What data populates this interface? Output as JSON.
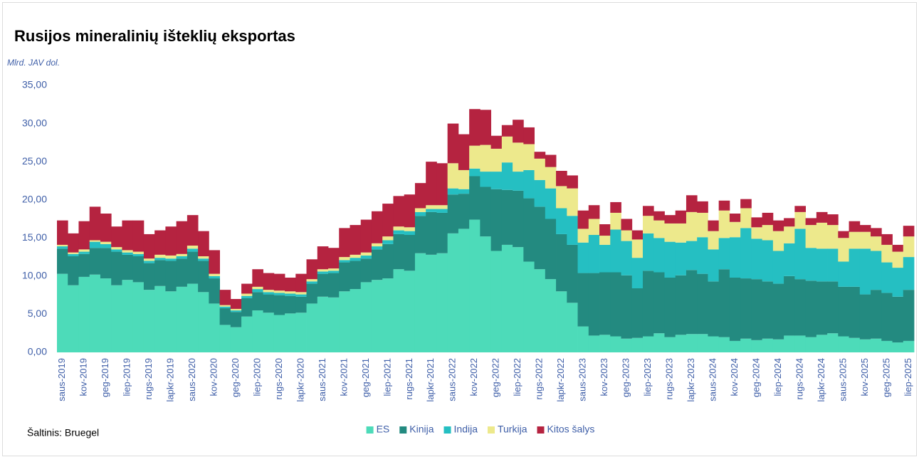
{
  "chart_data": {
    "type": "stacked_bar",
    "title": "Rusijos mineralinių išteklių eksportas",
    "y_axis_label": "Mlrd. JAV dol.",
    "source": "Šaltinis: Bruegel",
    "categories": [
      "saus-2019",
      null,
      "kov-2019",
      null,
      "geg-2019",
      null,
      "liep-2019",
      null,
      "rugs-2019",
      null,
      "lapkr-2019",
      null,
      "saus-2020",
      null,
      "kov-2020",
      null,
      "geg-2020",
      null,
      "liep-2020",
      null,
      "rugs-2020",
      null,
      "lapkr-2020",
      null,
      "saus-2021",
      null,
      "kov-2021",
      null,
      "geg-2021",
      null,
      "liep-2021",
      null,
      "rugs-2021",
      null,
      "lapkr-2021",
      null,
      "saus-2022",
      null,
      "kov-2022",
      null,
      "geg-2022",
      null,
      "liep-2022",
      null,
      "rugs-2022",
      null,
      "lapkr-2022",
      null,
      "saus-2023",
      null,
      "kov-2023",
      null,
      "geg-2023",
      null,
      "liep-2023",
      null,
      "rugs-2023",
      null,
      "lapkr-2023",
      null,
      "saus-2024",
      null,
      "kov-2024",
      null,
      "geg-2024",
      null,
      "liep-2024",
      null,
      "rugs-2024",
      null,
      "lapkr-2024",
      null,
      "saus-2025",
      null,
      "kov-2025",
      null,
      "geg-2025",
      null,
      "liep-2025"
    ],
    "series": [
      {
        "name": "ES",
        "color": "#4ddbb9",
        "values": [
          10.3,
          8.8,
          9.9,
          10.2,
          9.7,
          8.8,
          9.5,
          9.2,
          8.2,
          8.7,
          8.0,
          8.6,
          9.0,
          7.9,
          6.4,
          3.6,
          3.3,
          4.7,
          5.5,
          5.2,
          4.9,
          5.1,
          5.2,
          6.4,
          7.3,
          7.2,
          8.0,
          8.3,
          9.2,
          9.5,
          9.7,
          10.9,
          10.7,
          13.0,
          12.8,
          13.0,
          15.6,
          16.2,
          17.4,
          15.2,
          13.3,
          14.1,
          13.8,
          11.9,
          10.9,
          9.6,
          8.0,
          6.5,
          3.4,
          2.2,
          2.3,
          2.1,
          1.8,
          1.9,
          2.1,
          2.5,
          2.0,
          2.3,
          2.4,
          2.4,
          2.1,
          2.0,
          1.5,
          1.8,
          1.6,
          1.8,
          1.7,
          2.2,
          2.2,
          2.0,
          2.3,
          2.5,
          2.1,
          1.9,
          1.7,
          1.8,
          1.5,
          1.3,
          1.5
        ]
      },
      {
        "name": "Kinija",
        "color": "#238a80",
        "values": [
          3.3,
          3.8,
          3.0,
          3.5,
          4.0,
          4.4,
          3.3,
          3.4,
          3.5,
          3.4,
          4.0,
          3.7,
          4.2,
          4.1,
          3.3,
          2.2,
          2.0,
          2.4,
          2.4,
          2.4,
          2.6,
          2.3,
          2.1,
          2.6,
          3.0,
          3.2,
          3.8,
          3.7,
          3.1,
          4.0,
          4.5,
          4.6,
          4.7,
          4.9,
          5.6,
          5.3,
          5.1,
          4.6,
          5.7,
          6.5,
          8.1,
          7.2,
          7.4,
          8.3,
          8.2,
          7.9,
          7.5,
          7.6,
          7.0,
          8.2,
          8.2,
          8.4,
          8.3,
          6.5,
          8.6,
          8.0,
          7.8,
          7.8,
          8.4,
          7.9,
          7.2,
          8.9,
          8.3,
          7.9,
          8.0,
          7.5,
          7.3,
          7.8,
          7.4,
          7.4,
          7.0,
          6.8,
          6.5,
          6.7,
          5.9,
          6.4,
          6.3,
          6.0,
          6.7
        ]
      },
      {
        "name": "Indija",
        "color": "#25bfc2",
        "values": [
          0.3,
          0.3,
          0.3,
          0.8,
          0.5,
          0.3,
          0.3,
          0.3,
          0.3,
          0.3,
          0.3,
          0.3,
          0.4,
          0.3,
          0.3,
          0.2,
          0.2,
          0.3,
          0.4,
          0.3,
          0.3,
          0.3,
          0.3,
          0.3,
          0.3,
          0.3,
          0.3,
          0.4,
          0.4,
          0.4,
          0.5,
          0.5,
          0.5,
          0.5,
          0.4,
          0.5,
          0.8,
          0.6,
          1.0,
          2.0,
          2.3,
          3.6,
          2.5,
          3.7,
          3.5,
          4.0,
          3.4,
          3.8,
          4.0,
          5.0,
          3.6,
          5.6,
          4.5,
          4.0,
          4.9,
          4.5,
          4.7,
          4.3,
          3.8,
          4.8,
          4.2,
          4.1,
          5.3,
          6.6,
          5.3,
          5.4,
          4.3,
          4.3,
          6.6,
          4.3,
          4.3,
          4.3,
          3.3,
          5.0,
          6.0,
          5.1,
          4.0,
          3.8,
          4.3
        ]
      },
      {
        "name": "Turkija",
        "color": "#ede98c",
        "values": [
          0.2,
          0.2,
          0.3,
          0.2,
          0.3,
          0.3,
          0.3,
          0.3,
          0.3,
          0.4,
          0.4,
          0.3,
          0.4,
          0.3,
          0.3,
          0.2,
          0.2,
          0.3,
          0.3,
          0.3,
          0.3,
          0.3,
          0.3,
          0.3,
          0.3,
          0.3,
          0.4,
          0.4,
          0.4,
          0.4,
          0.5,
          0.5,
          0.5,
          0.5,
          0.5,
          0.5,
          3.3,
          2.5,
          3.0,
          3.5,
          3.0,
          3.4,
          3.8,
          3.4,
          2.8,
          2.8,
          2.9,
          3.6,
          1.8,
          2.1,
          1.2,
          2.2,
          1.4,
          2.4,
          2.3,
          2.3,
          2.4,
          2.5,
          3.8,
          3.2,
          2.4,
          3.6,
          2.0,
          2.6,
          1.5,
          2.0,
          2.6,
          2.2,
          2.2,
          3.0,
          3.4,
          3.1,
          3.1,
          2.2,
          2.2,
          1.9,
          2.3,
          2.1,
          2.7
        ]
      },
      {
        "name": "Kitos šalys",
        "color": "#b52340",
        "values": [
          3.2,
          2.5,
          3.7,
          4.4,
          3.7,
          2.7,
          3.9,
          4.1,
          3.2,
          3.2,
          3.8,
          4.3,
          4.0,
          3.3,
          3.1,
          2.0,
          1.3,
          1.3,
          2.3,
          2.2,
          2.2,
          1.8,
          2.4,
          2.6,
          3.0,
          2.7,
          3.8,
          3.9,
          4.3,
          4.2,
          4.3,
          4.0,
          4.3,
          3.3,
          5.7,
          5.5,
          5.2,
          4.7,
          4.8,
          4.6,
          1.7,
          1.5,
          3.0,
          2.2,
          0.9,
          1.6,
          2.0,
          1.7,
          2.4,
          1.8,
          1.5,
          1.4,
          1.5,
          1.2,
          1.3,
          1.2,
          1.1,
          1.7,
          2.2,
          1.5,
          1.4,
          1.3,
          1.1,
          1.2,
          1.3,
          1.6,
          1.4,
          1.1,
          0.8,
          0.9,
          1.4,
          1.4,
          0.9,
          1.4,
          0.9,
          1.1,
          1.4,
          0.9,
          1.4
        ]
      }
    ],
    "ylim": [
      0,
      35
    ],
    "yticks": [
      {
        "value": 0,
        "label": "0,00"
      },
      {
        "value": 5,
        "label": "5,00"
      },
      {
        "value": 10,
        "label": "10,00"
      },
      {
        "value": 15,
        "label": "15,00"
      },
      {
        "value": 20,
        "label": "20,00"
      },
      {
        "value": 25,
        "label": "25,00"
      },
      {
        "value": 30,
        "label": "30,00"
      },
      {
        "value": 35,
        "label": "35,00"
      }
    ],
    "legend": "bottom",
    "grid": false
  }
}
